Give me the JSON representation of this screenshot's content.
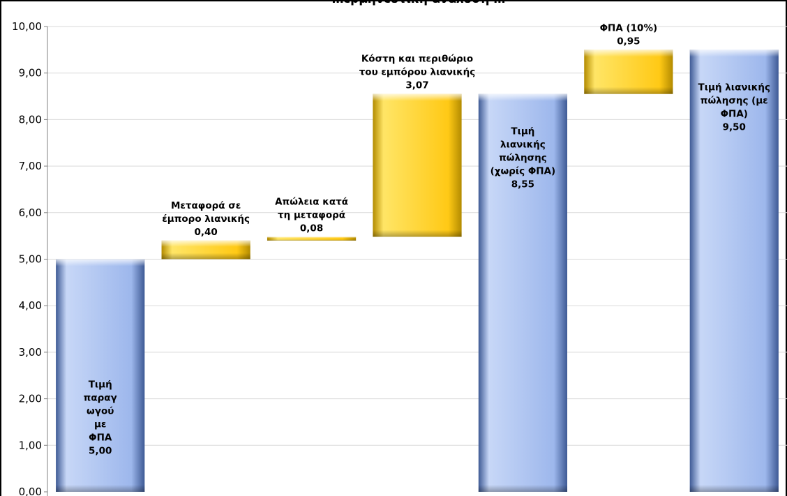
{
  "chart_data": {
    "type": "bar",
    "subtype": "waterfall",
    "title": "…ερμηνευτική ανάλυση …",
    "ylim": [
      0,
      10
    ],
    "yticks": [
      "0,00",
      "1,00",
      "2,00",
      "3,00",
      "4,00",
      "5,00",
      "6,00",
      "7,00",
      "8,00",
      "9,00",
      "10,00"
    ],
    "grid": true,
    "bars": [
      {
        "kind": "total",
        "base": 0,
        "value": 5.0,
        "label_lines": [
          "Τιμή",
          "παραγ",
          "ωγού",
          "με",
          "ΦΠΑ",
          "5,00"
        ],
        "label_pos": "inside"
      },
      {
        "kind": "delta",
        "base": 5.0,
        "value": 0.4,
        "label_lines": [
          "Μεταφορά σε",
          "έμπορο λιανικής",
          "0,40"
        ],
        "label_pos": "above"
      },
      {
        "kind": "delta",
        "base": 5.4,
        "value": 0.08,
        "label_lines": [
          "Απώλεια κατά",
          "τη μεταφορά",
          "0,08"
        ],
        "label_pos": "above"
      },
      {
        "kind": "delta",
        "base": 5.48,
        "value": 3.07,
        "label_lines": [
          "Κόστη και περιθώριο",
          "του εμπόρου λιανικής",
          "3,07"
        ],
        "label_pos": "above"
      },
      {
        "kind": "total",
        "base": 0,
        "value": 8.55,
        "label_lines": [
          "Τιμή",
          "λιανικής",
          "πώλησης",
          "(χωρίς ΦΠΑ)",
          "8,55"
        ],
        "label_pos": "inside"
      },
      {
        "kind": "delta",
        "base": 8.55,
        "value": 0.95,
        "label_lines": [
          "ΦΠΑ (10%)",
          "0,95"
        ],
        "label_pos": "above"
      },
      {
        "kind": "total",
        "base": 0,
        "value": 9.5,
        "label_lines": [
          "Τιμή λιανικής",
          "πώλησης (με",
          "ΦΠΑ)",
          "9,50"
        ],
        "label_pos": "inside"
      }
    ],
    "colors": {
      "total_light": "#c7d7f7",
      "total_mid": "#9db7ec",
      "total_dark": "#3e5a95",
      "delta_light": "#ffe566",
      "delta_mid": "#ffc915",
      "delta_dark": "#b38b00",
      "grid": "#d9d9d9"
    }
  }
}
